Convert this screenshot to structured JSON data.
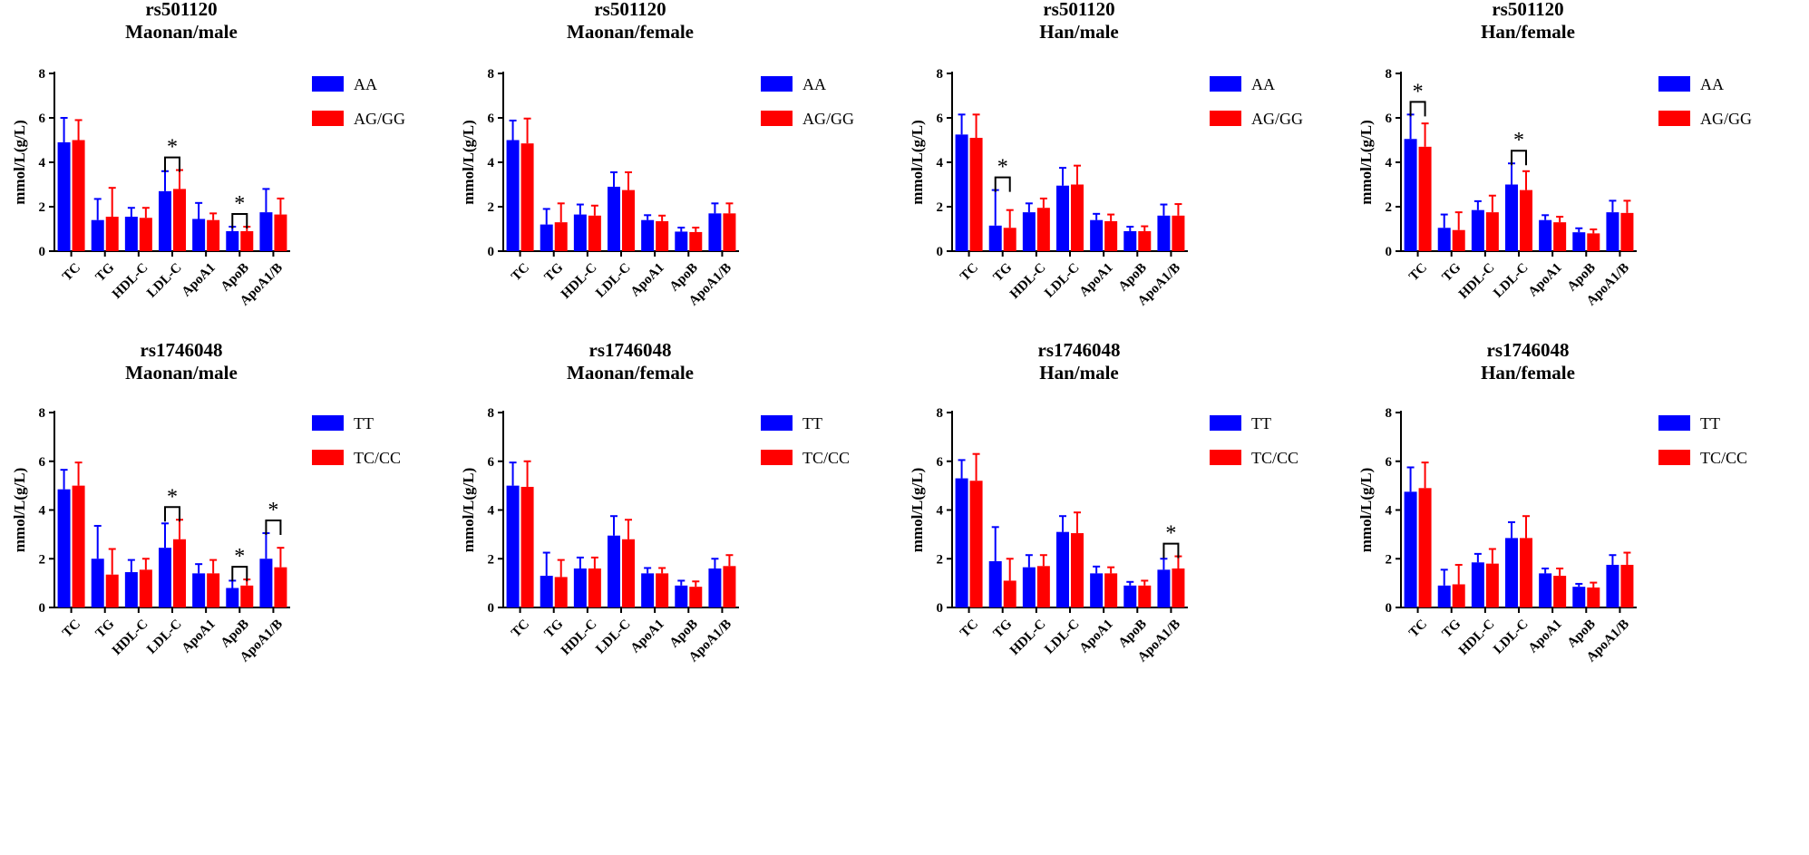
{
  "chart_data": [
    {
      "type": "bar",
      "snp": "rs501120",
      "title": "Maonan/male",
      "ylabel": "mmol/L(g/L)",
      "ylim": [
        0,
        8
      ],
      "yticks": [
        0,
        2,
        4,
        6,
        8
      ],
      "categories": [
        "TC",
        "TG",
        "HDL-C",
        "LDL-C",
        "ApoA1",
        "ApoB",
        "ApoA1/B"
      ],
      "series": [
        {
          "name": "AA",
          "color": "#0000ff",
          "values": [
            4.9,
            1.4,
            1.55,
            2.7,
            1.45,
            0.9,
            1.75
          ],
          "errors": [
            1.1,
            0.95,
            0.4,
            0.9,
            0.72,
            0.2,
            1.05
          ]
        },
        {
          "name": "AG/GG",
          "color": "#ff0000",
          "values": [
            5.0,
            1.55,
            1.5,
            2.8,
            1.4,
            0.9,
            1.65
          ],
          "errors": [
            0.9,
            1.3,
            0.45,
            0.85,
            0.3,
            0.2,
            0.72
          ]
        }
      ],
      "significance": [
        {
          "category": "LDL-C",
          "label": "*"
        },
        {
          "category": "ApoB",
          "label": "*"
        }
      ]
    },
    {
      "type": "bar",
      "snp": "rs501120",
      "title": "Maonan/female",
      "ylabel": "mmol/L(g/L)",
      "ylim": [
        0,
        8
      ],
      "yticks": [
        0,
        2,
        4,
        6,
        8
      ],
      "categories": [
        "TC",
        "TG",
        "HDL-C",
        "LDL-C",
        "ApoA1",
        "ApoB",
        "ApoA1/B"
      ],
      "series": [
        {
          "name": "AA",
          "color": "#0000ff",
          "values": [
            5.0,
            1.2,
            1.65,
            2.9,
            1.4,
            0.88,
            1.7
          ],
          "errors": [
            0.88,
            0.7,
            0.45,
            0.65,
            0.22,
            0.18,
            0.45
          ]
        },
        {
          "name": "AG/GG",
          "color": "#ff0000",
          "values": [
            4.85,
            1.3,
            1.6,
            2.75,
            1.35,
            0.86,
            1.7
          ],
          "errors": [
            1.12,
            0.85,
            0.45,
            0.8,
            0.25,
            0.2,
            0.45
          ]
        }
      ],
      "significance": []
    },
    {
      "type": "bar",
      "snp": "rs501120",
      "title": "Han/male",
      "ylabel": "mmol/L(g/L)",
      "ylim": [
        0,
        8
      ],
      "yticks": [
        0,
        2,
        4,
        6,
        8
      ],
      "categories": [
        "TC",
        "TG",
        "HDL-C",
        "LDL-C",
        "ApoA1",
        "ApoB",
        "ApoA1/B"
      ],
      "series": [
        {
          "name": "AA",
          "color": "#0000ff",
          "values": [
            5.25,
            1.15,
            1.75,
            2.95,
            1.4,
            0.9,
            1.6
          ],
          "errors": [
            0.9,
            1.6,
            0.4,
            0.8,
            0.28,
            0.2,
            0.5
          ]
        },
        {
          "name": "AG/GG",
          "color": "#ff0000",
          "values": [
            5.1,
            1.05,
            1.95,
            3.0,
            1.35,
            0.9,
            1.6
          ],
          "errors": [
            1.05,
            0.8,
            0.42,
            0.85,
            0.3,
            0.22,
            0.52
          ]
        }
      ],
      "significance": [
        {
          "category": "TG",
          "label": "*"
        }
      ]
    },
    {
      "type": "bar",
      "snp": "rs501120",
      "title": "Han/female",
      "ylabel": "mmol/L(g/L)",
      "ylim": [
        0,
        8
      ],
      "yticks": [
        0,
        2,
        4,
        6,
        8
      ],
      "categories": [
        "TC",
        "TG",
        "HDL-C",
        "LDL-C",
        "ApoA1",
        "ApoB",
        "ApoA1/B"
      ],
      "series": [
        {
          "name": "AA",
          "color": "#0000ff",
          "values": [
            5.05,
            1.05,
            1.85,
            3.0,
            1.4,
            0.85,
            1.75
          ],
          "errors": [
            1.1,
            0.6,
            0.4,
            0.95,
            0.22,
            0.18,
            0.52
          ]
        },
        {
          "name": "AG/GG",
          "color": "#ff0000",
          "values": [
            4.7,
            0.95,
            1.75,
            2.75,
            1.3,
            0.8,
            1.72
          ],
          "errors": [
            1.05,
            0.8,
            0.75,
            0.85,
            0.25,
            0.18,
            0.55
          ]
        }
      ],
      "significance": [
        {
          "category": "TC",
          "label": "*"
        },
        {
          "category": "LDL-C",
          "label": "*"
        }
      ]
    },
    {
      "type": "bar",
      "snp": "rs1746048",
      "title": "Maonan/male",
      "ylabel": "mmol/L(g/L)",
      "ylim": [
        0,
        8
      ],
      "yticks": [
        0,
        2,
        4,
        6,
        8
      ],
      "categories": [
        "TC",
        "TG",
        "HDL-C",
        "LDL-C",
        "ApoA1",
        "ApoB",
        "ApoA1/B"
      ],
      "series": [
        {
          "name": "TT",
          "color": "#0000ff",
          "values": [
            4.85,
            2.0,
            1.45,
            2.45,
            1.4,
            0.8,
            2.0
          ],
          "errors": [
            0.8,
            1.35,
            0.5,
            1.0,
            0.38,
            0.3,
            1.05
          ]
        },
        {
          "name": "TC/CC",
          "color": "#ff0000",
          "values": [
            5.0,
            1.35,
            1.55,
            2.8,
            1.4,
            0.9,
            1.65
          ],
          "errors": [
            0.95,
            1.05,
            0.45,
            0.8,
            0.55,
            0.25,
            0.8
          ]
        }
      ],
      "significance": [
        {
          "category": "LDL-C",
          "label": "*"
        },
        {
          "category": "ApoB",
          "label": "*"
        },
        {
          "category": "ApoA1/B",
          "label": "*"
        }
      ]
    },
    {
      "type": "bar",
      "snp": "rs1746048",
      "title": "Maonan/female",
      "ylabel": "mmol/L(g/L)",
      "ylim": [
        0,
        8
      ],
      "yticks": [
        0,
        2,
        4,
        6,
        8
      ],
      "categories": [
        "TC",
        "TG",
        "HDL-C",
        "LDL-C",
        "ApoA1",
        "ApoB",
        "ApoA1/B"
      ],
      "series": [
        {
          "name": "TT",
          "color": "#0000ff",
          "values": [
            5.0,
            1.3,
            1.6,
            2.95,
            1.4,
            0.9,
            1.6
          ],
          "errors": [
            0.95,
            0.95,
            0.45,
            0.8,
            0.22,
            0.2,
            0.4
          ]
        },
        {
          "name": "TC/CC",
          "color": "#ff0000",
          "values": [
            4.95,
            1.25,
            1.6,
            2.8,
            1.4,
            0.85,
            1.7
          ],
          "errors": [
            1.05,
            0.7,
            0.45,
            0.8,
            0.22,
            0.22,
            0.45
          ]
        }
      ],
      "significance": []
    },
    {
      "type": "bar",
      "snp": "rs1746048",
      "title": "Han/male",
      "ylabel": "mmol/L(g/L)",
      "ylim": [
        0,
        8
      ],
      "yticks": [
        0,
        2,
        4,
        6,
        8
      ],
      "categories": [
        "TC",
        "TG",
        "HDL-C",
        "LDL-C",
        "ApoA1",
        "ApoB",
        "ApoA1/B"
      ],
      "series": [
        {
          "name": "TT",
          "color": "#0000ff",
          "values": [
            5.3,
            1.9,
            1.65,
            3.1,
            1.4,
            0.9,
            1.55
          ],
          "errors": [
            0.75,
            1.4,
            0.5,
            0.65,
            0.28,
            0.15,
            0.45
          ]
        },
        {
          "name": "TC/CC",
          "color": "#ff0000",
          "values": [
            5.2,
            1.1,
            1.7,
            3.05,
            1.4,
            0.9,
            1.6
          ],
          "errors": [
            1.1,
            0.9,
            0.45,
            0.85,
            0.25,
            0.2,
            0.5
          ]
        }
      ],
      "significance": [
        {
          "category": "ApoA1/B",
          "label": "*"
        }
      ]
    },
    {
      "type": "bar",
      "snp": "rs1746048",
      "title": "Han/female",
      "ylabel": "mmol/L(g/L)",
      "ylim": [
        0,
        8
      ],
      "yticks": [
        0,
        2,
        4,
        6,
        8
      ],
      "categories": [
        "TC",
        "TG",
        "HDL-C",
        "LDL-C",
        "ApoA1",
        "ApoB",
        "ApoA1/B"
      ],
      "series": [
        {
          "name": "TT",
          "color": "#0000ff",
          "values": [
            4.75,
            0.9,
            1.85,
            2.85,
            1.4,
            0.85,
            1.75
          ],
          "errors": [
            1.0,
            0.65,
            0.35,
            0.65,
            0.2,
            0.12,
            0.4
          ]
        },
        {
          "name": "TC/CC",
          "color": "#ff0000",
          "values": [
            4.9,
            0.95,
            1.8,
            2.85,
            1.3,
            0.82,
            1.75
          ],
          "errors": [
            1.05,
            0.8,
            0.6,
            0.9,
            0.3,
            0.2,
            0.5
          ]
        }
      ],
      "significance": []
    }
  ]
}
